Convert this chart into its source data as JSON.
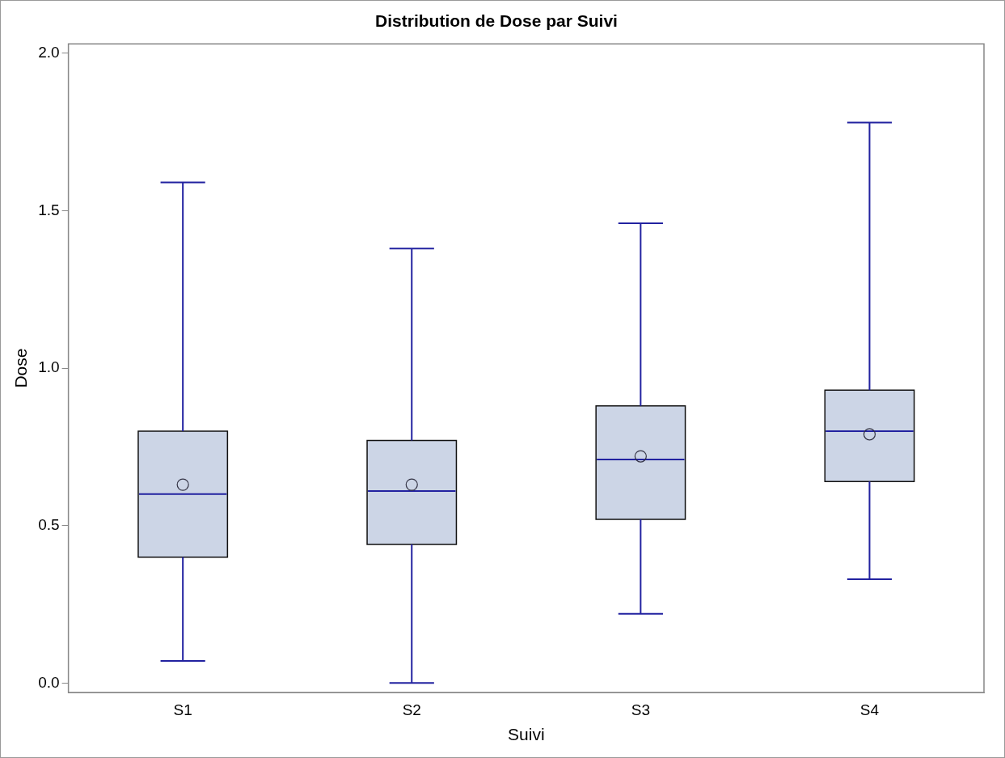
{
  "chart_data": {
    "type": "box",
    "title": "Distribution de Dose par Suivi",
    "xlabel": "Suivi",
    "ylabel": "Dose",
    "categories": [
      "S1",
      "S2",
      "S3",
      "S4"
    ],
    "series": [
      {
        "color": "#ccd5e6",
        "boxes": [
          {
            "low": 0.07,
            "q1": 0.4,
            "median": 0.6,
            "q3": 0.8,
            "high": 1.59,
            "mean": 0.63
          },
          {
            "low": 0,
            "q1": 0.44,
            "median": 0.61,
            "q3": 0.77,
            "high": 1.38,
            "mean": 0.63
          },
          {
            "low": 0.22,
            "q1": 0.52,
            "median": 0.71,
            "q3": 0.88,
            "high": 1.46,
            "mean": 0.72
          },
          {
            "low": 0.33,
            "q1": 0.64,
            "median": 0.8,
            "q3": 0.93,
            "high": 1.78,
            "mean": 0.79
          }
        ]
      }
    ],
    "ylim": [
      -0.03,
      2.03
    ],
    "yticks": [
      {
        "value": 0,
        "label": "0.0"
      },
      {
        "value": 0.5,
        "label": "0.5"
      },
      {
        "value": 1,
        "label": "1.0"
      },
      {
        "value": 1.5,
        "label": "1.5"
      },
      {
        "value": 2,
        "label": "2.0"
      }
    ],
    "grid": false,
    "legend": false
  }
}
